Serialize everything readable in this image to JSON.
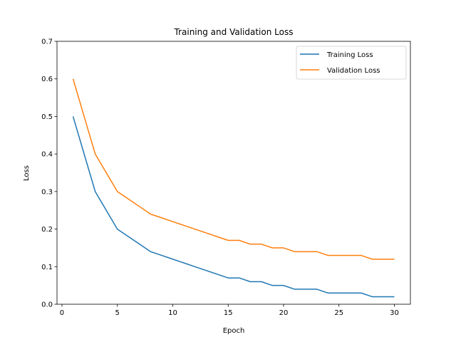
{
  "chart_data": {
    "type": "line",
    "title": "Training and Validation Loss",
    "xlabel": "Epoch",
    "ylabel": "Loss",
    "xlim": [
      -0.45,
      31.45
    ],
    "ylim": [
      0,
      0.7
    ],
    "xticks": [
      0,
      5,
      10,
      15,
      20,
      25,
      30
    ],
    "yticks": [
      0.0,
      0.1,
      0.2,
      0.3,
      0.4,
      0.5,
      0.6,
      0.7
    ],
    "xtick_labels": [
      "0",
      "5",
      "10",
      "15",
      "20",
      "25",
      "30"
    ],
    "ytick_labels": [
      "0.0",
      "0.1",
      "0.2",
      "0.3",
      "0.4",
      "0.5",
      "0.6",
      "0.7"
    ],
    "grid": false,
    "legend_position": "top-right",
    "x": [
      1,
      2,
      3,
      4,
      5,
      6,
      7,
      8,
      9,
      10,
      11,
      12,
      13,
      14,
      15,
      16,
      17,
      18,
      19,
      20,
      21,
      22,
      23,
      24,
      25,
      26,
      27,
      28,
      29,
      30
    ],
    "series": [
      {
        "name": "Training Loss",
        "color": "#1f77b4",
        "values": [
          0.5,
          0.4,
          0.3,
          0.25,
          0.2,
          0.18,
          0.16,
          0.14,
          0.13,
          0.12,
          0.11,
          0.1,
          0.09,
          0.08,
          0.07,
          0.07,
          0.06,
          0.06,
          0.05,
          0.05,
          0.04,
          0.04,
          0.04,
          0.03,
          0.03,
          0.03,
          0.03,
          0.02,
          0.02,
          0.02
        ]
      },
      {
        "name": "Validation Loss",
        "color": "#ff7f0e",
        "values": [
          0.6,
          0.5,
          0.4,
          0.35,
          0.3,
          0.28,
          0.26,
          0.24,
          0.23,
          0.22,
          0.21,
          0.2,
          0.19,
          0.18,
          0.17,
          0.17,
          0.16,
          0.16,
          0.15,
          0.15,
          0.14,
          0.14,
          0.14,
          0.13,
          0.13,
          0.13,
          0.13,
          0.12,
          0.12,
          0.12
        ]
      }
    ]
  }
}
